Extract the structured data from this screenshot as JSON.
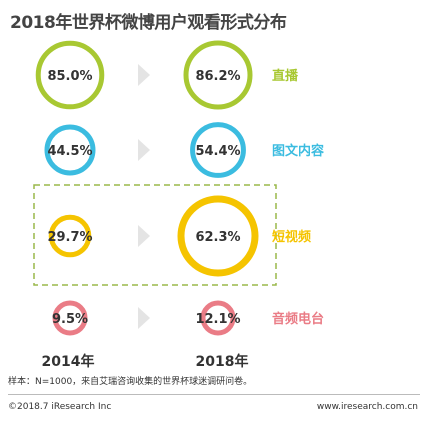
{
  "chart_data": {
    "type": "bubble-comparison",
    "title": "2018年世界杯微博用户观看形式分布",
    "years": [
      "2014年",
      "2018年"
    ],
    "series": [
      {
        "name": "直播",
        "values": [
          85.0,
          86.2
        ],
        "labels": [
          "85.0%",
          "86.2%"
        ],
        "color": "#a8c832"
      },
      {
        "name": "图文内容",
        "values": [
          44.5,
          54.4
        ],
        "labels": [
          "44.5%",
          "54.4%"
        ],
        "color": "#3bbce0"
      },
      {
        "name": "短视频",
        "values": [
          29.7,
          62.3
        ],
        "labels": [
          "29.7%",
          "62.3%"
        ],
        "color": "#f5c400"
      },
      {
        "name": "音频电台",
        "values": [
          9.5,
          12.1
        ],
        "labels": [
          "9.5%",
          "12.1%"
        ],
        "color": "#ea7c86"
      }
    ],
    "highlight": "短视频",
    "highlight_color": "#9ab84a"
  },
  "note": "样本：N=1000，来自艾瑞咨询收集的世界杯球迷调研问卷。",
  "footer": {
    "copyright": "©2018.7 iResearch Inc",
    "website": "www.iresearch.com.cn"
  }
}
